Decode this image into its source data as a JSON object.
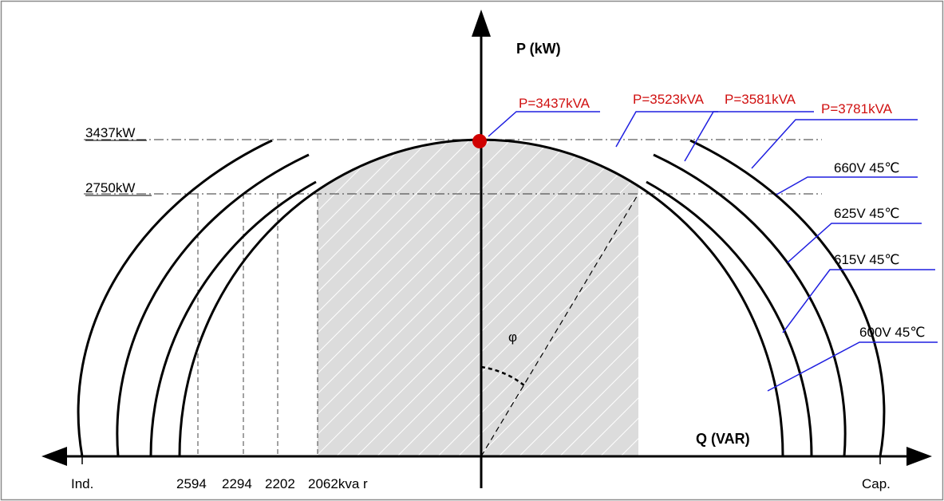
{
  "axes": {
    "vertical_label": "P (kW)",
    "horizontal_label": "Q (VAR)",
    "left_end_label": "Ind.",
    "right_end_label": "Cap."
  },
  "power_levels": {
    "rated_label": "3437kW",
    "reduced_label": "2750kW"
  },
  "reactive_ticks": [
    "2594",
    "2294",
    "2202",
    "2062kva r"
  ],
  "apparent_power_labels": [
    "P=3437kVA",
    "P=3523kVA",
    "P=3581kVA",
    "P=3781kVA"
  ],
  "voltage_labels": [
    "660V 45℃",
    "625V 45℃",
    "615V 45℃",
    "600V 45℃"
  ],
  "angle_label": "φ",
  "colors": {
    "apparent_label": "#d01010",
    "leader_line": "#1f1fe0",
    "operating_point": "#d00000",
    "shaded_region": "#dcdcdc",
    "curves": "#000000"
  }
}
